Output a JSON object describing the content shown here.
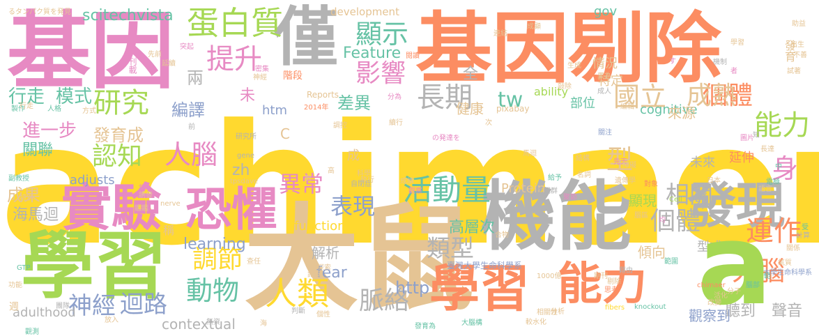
{
  "palette": {
    "pink": "#e78ac3",
    "orange": "#fc8d62",
    "green": "#a6d854",
    "yellow": "#ffd92f",
    "tan": "#e5c494",
    "gray": "#b3b3b3",
    "teal": "#66c2a5",
    "blue": "#8da0cb"
  },
  "words": [
    "achimaerin",
    "大鼠",
    "基因",
    "基因",
    "剔除",
    "學習",
    "學習",
    "機能",
    "僅",
    "發現",
    "實驗",
    "恐懼",
    "能力",
    "能力",
    "蛋白質",
    "提升",
    "顯示",
    "影響",
    "長期",
    "研究",
    "認知",
    "活動量",
    "異常",
    "表現",
    "運作",
    "大腦",
    "人類",
    "動物",
    "神經",
    "迴路",
    "調節",
    "脈絡",
    "類型",
    "個體",
    "個體",
    "成熟",
    "國立",
    "相關",
    "人腦",
    "型",
    "身",
    "tw",
    "scitechvista",
    "Feature",
    "contextual",
    "fear",
    "learning",
    "function",
    "Protein",
    "http",
    "htm",
    "zh",
    "adjusts",
    "adulthood",
    "gov",
    "cognitive",
    "ability",
    "development",
    "Reports",
    "pixabay",
    "行走",
    "模式",
    "編譯",
    "進一步",
    "關聯",
    "發育成",
    "成果",
    "海馬迴",
    "聽到",
    "聲音",
    "觀察到",
    "差異",
    "未",
    "兩",
    "全",
    "健康",
    "部位",
    "來源",
    "延伸",
    "顯現",
    "高層次",
    "解析",
    "傾向",
    "型式",
    "情況",
    "特定",
    "未來",
    "發育",
    "臺灣大學生命科學系",
    "臺灣師範大學生命科學系",
    "a",
    "成",
    "C",
    "週",
    "稱",
    "階段",
    "2014年",
    "9月",
    "1000億",
    "chimaer",
    "tpsdave",
    "knockout",
    "fibers",
    "nerve",
    "gene",
    "Cell",
    "GTP",
    "李冠群",
    "日本",
    "中",
    "るタンパク質を発見",
    "の発達を",
    "突起",
    "延續",
    "刊載",
    "先前",
    "副教授",
    "製作",
    "人格",
    "方式",
    "特別",
    "研究所",
    "密集",
    "神經",
    "閱讀",
    "連結",
    "成顯",
    "助益",
    "出生",
    "不善",
    "試著",
    "成人",
    "生成",
    "果為",
    "編輯",
    "圖片",
    "長達",
    "電極",
    "語言",
    "計算",
    "受",
    "關係",
    "氣質",
    "分子",
    "藉由",
    "剔除",
    "先天",
    "名詞",
    "結構",
    "給予",
    "腦區",
    "李",
    "記錄",
    "探索",
    "查任",
    "判斷",
    "個性",
    "發育為",
    "大腦構",
    "較水化",
    "分析",
    "相關性",
    "期刊",
    "思考",
    "範圍",
    "活化",
    "改變",
    "觀測",
    "機制",
    "觀察",
    "成績",
    "執行",
    "自閉症",
    "科學",
    "高",
    "數",
    "調控",
    "續行",
    "分為",
    "學習",
    "行走",
    "次",
    "障礙",
    "關注",
    "遺傳學",
    "馬迴",
    "聚節",
    "均",
    "對象",
    "腦部",
    "範",
    "指",
    "誘發",
    "鑑鑑",
    "合物",
    "腸",
    "團隊",
    "放入",
    "無資",
    "海",
    "功能",
    "前",
    "敲除",
    "者",
    "知",
    "す"
  ]
}
